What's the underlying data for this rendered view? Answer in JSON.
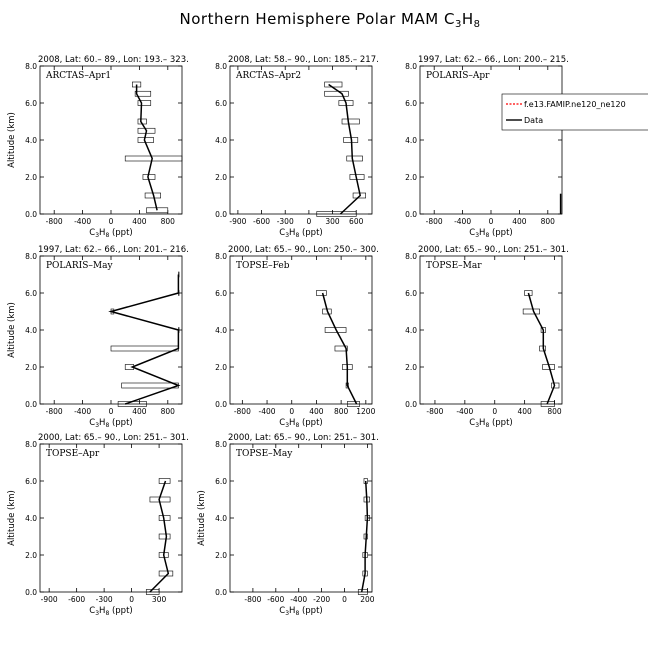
{
  "figure": {
    "title": "Northern Hemisphere Polar MAM C",
    "title_sub1": "3",
    "title_mid": "H",
    "title_sub2": "8",
    "xlabel_main": "C",
    "xlabel_sub1": "3",
    "xlabel_mid": "H",
    "xlabel_sub2": "8",
    "xlabel_unit": " (ppt)",
    "ylabel": "Altitude (km)",
    "colors": {
      "model": "#ff0000",
      "data": "#000000",
      "box": "#000000"
    }
  },
  "chart_data": [
    {
      "type": "line",
      "header": "2008, Lat:  60.– 89., Lon: 193.– 323.",
      "campaign": "ARCTAS–Apr1",
      "xlim": [
        -1000,
        1000
      ],
      "xticks": [
        "-800",
        "-400",
        "0",
        "400",
        "800"
      ],
      "ylim": [
        0,
        8
      ],
      "yticks": [
        "0.0",
        "2.0",
        "4.0",
        "6.0",
        "8.0"
      ],
      "show_yaxis_label": true,
      "series": [
        {
          "x": [
            650,
            600,
            520,
            580,
            470,
            500,
            420,
            430,
            360,
            360
          ],
          "y": [
            0.2,
            1.0,
            2.0,
            3.0,
            4.0,
            4.5,
            5.0,
            6.0,
            6.5,
            7.0
          ],
          "box_lo": [
            500,
            480,
            450,
            200,
            380,
            380,
            380,
            380,
            340,
            300
          ],
          "box_hi": [
            800,
            700,
            620,
            1000,
            600,
            620,
            500,
            560,
            560,
            420
          ]
        }
      ]
    },
    {
      "type": "line",
      "header": "2008, Lat:  58.– 90., Lon: 185.– 217.",
      "campaign": "ARCTAS–Apr2",
      "xlim": [
        -1000,
        800
      ],
      "xticks": [
        "-900",
        "-600",
        "-300",
        "0",
        "300",
        "600"
      ],
      "ylim": [
        0,
        8
      ],
      "yticks": [
        "0.0",
        "2.0",
        "4.0",
        "6.0",
        "8.0"
      ],
      "show_yaxis_label": false,
      "series": [
        {
          "x": [
            400,
            650,
            600,
            550,
            540,
            500,
            470,
            420,
            250
          ],
          "y": [
            0.0,
            1.0,
            2.0,
            3.0,
            4.0,
            5.0,
            6.0,
            6.5,
            7.0
          ],
          "box_lo": [
            100,
            560,
            520,
            480,
            440,
            420,
            380,
            200,
            200
          ],
          "box_hi": [
            600,
            720,
            700,
            680,
            620,
            640,
            560,
            500,
            420
          ]
        }
      ]
    },
    {
      "type": "line",
      "header": "1997, Lat:  62.– 66., Lon: 200.– 215.",
      "campaign": "POLARIS–Apr",
      "xlim": [
        -1000,
        1000
      ],
      "xticks": [
        "-800",
        "-400",
        "0",
        "400",
        "800"
      ],
      "ylim": [
        0,
        8
      ],
      "yticks": [
        "0.0",
        "2.0",
        "4.0",
        "6.0",
        "8.0"
      ],
      "show_yaxis_label": false,
      "legend": {
        "placement": "top-right",
        "entries": [
          "f.e13.FAMIP.ne120_ne120",
          "Data"
        ]
      },
      "series": [
        {
          "x": [
            980,
            980
          ],
          "y": [
            0.0,
            1.1
          ],
          "box_lo": [],
          "box_hi": []
        }
      ]
    },
    {
      "type": "line",
      "header": "1997, Lat:  62.– 66., Lon: 201.– 216.",
      "campaign": "POLARIS–May",
      "xlim": [
        -1000,
        1000
      ],
      "xticks": [
        "-800",
        "-400",
        "0",
        "400",
        "800"
      ],
      "ylim": [
        0,
        8
      ],
      "yticks": [
        "0.0",
        "2.0",
        "4.0",
        "6.0",
        "8.0"
      ],
      "show_yaxis_label": true,
      "series": [
        {
          "x": [
            200,
            950,
            300,
            950,
            950,
            0,
            950,
            950
          ],
          "y": [
            0.0,
            1.0,
            2.0,
            3.0,
            4.0,
            5.0,
            6.0,
            7.0
          ],
          "box_lo": [
            100,
            150,
            200,
            0,
            950,
            0,
            950,
            950
          ],
          "box_hi": [
            500,
            950,
            320,
            950,
            950,
            40,
            950,
            950
          ]
        }
      ]
    },
    {
      "type": "line",
      "header": "2000, Lat:  65.– 90., Lon: 250.– 300.",
      "campaign": "TOPSE–Feb",
      "xlim": [
        -1000,
        1300
      ],
      "xticks": [
        "-800",
        "-400",
        "0",
        "400",
        "800",
        "1200"
      ],
      "ylim": [
        0,
        8
      ],
      "yticks": [
        "0.0",
        "2.0",
        "4.0",
        "6.0",
        "8.0"
      ],
      "show_yaxis_label": false,
      "series": [
        {
          "x": [
            1050,
            900,
            900,
            880,
            720,
            580,
            500
          ],
          "y": [
            0.0,
            1.0,
            2.0,
            3.0,
            4.0,
            5.0,
            6.0
          ],
          "box_lo": [
            900,
            880,
            820,
            700,
            540,
            500,
            400
          ],
          "box_hi": [
            1100,
            920,
            980,
            900,
            880,
            640,
            560
          ]
        }
      ]
    },
    {
      "type": "line",
      "header": "2000, Lat:  65.– 90., Lon: 251.– 301.",
      "campaign": "TOPSE–Mar",
      "xlim": [
        -1000,
        900
      ],
      "xticks": [
        "-800",
        "-400",
        "0",
        "400",
        "800"
      ],
      "ylim": [
        0,
        8
      ],
      "yticks": [
        "0.0",
        "2.0",
        "4.0",
        "6.0",
        "8.0"
      ],
      "show_yaxis_label": false,
      "series": [
        {
          "x": [
            700,
            800,
            730,
            650,
            650,
            520,
            450
          ],
          "y": [
            0.0,
            1.0,
            2.0,
            3.0,
            4.0,
            5.0,
            6.0
          ],
          "box_lo": [
            620,
            760,
            640,
            600,
            620,
            380,
            400
          ],
          "box_hi": [
            800,
            860,
            800,
            680,
            680,
            600,
            500
          ]
        }
      ]
    },
    {
      "type": "line",
      "header": "2000, Lat:  65.– 90., Lon: 251.– 301.",
      "campaign": "TOPSE–Apr",
      "xlim": [
        -1000,
        550
      ],
      "xticks": [
        "-900",
        "-600",
        "-300",
        "0",
        "300"
      ],
      "ylim": [
        0,
        8
      ],
      "yticks": [
        "0.0",
        "2.0",
        "4.0",
        "6.0",
        "8.0"
      ],
      "show_yaxis_label": true,
      "series": [
        {
          "x": [
            200,
            400,
            350,
            380,
            350,
            300,
            370
          ],
          "y": [
            0.0,
            1.0,
            2.0,
            3.0,
            4.0,
            5.0,
            6.0
          ],
          "box_lo": [
            160,
            300,
            300,
            300,
            300,
            200,
            300
          ],
          "box_hi": [
            300,
            450,
            400,
            420,
            420,
            420,
            420
          ]
        }
      ]
    },
    {
      "type": "line",
      "header": "2000, Lat:  65.– 90., Lon: 251.– 301.",
      "campaign": "TOPSE–May",
      "xlim": [
        -1000,
        240
      ],
      "xticks": [
        "-800",
        "-600",
        "-400",
        "-200",
        "0",
        "200"
      ],
      "ylim": [
        0,
        8
      ],
      "yticks": [
        "0.0",
        "2.0",
        "4.0",
        "6.0",
        "8.0"
      ],
      "show_yaxis_label": true,
      "series": [
        {
          "x": [
            150,
            180,
            180,
            190,
            200,
            195,
            185
          ],
          "y": [
            0.0,
            1.0,
            2.0,
            3.0,
            4.0,
            5.0,
            6.0
          ],
          "box_lo": [
            120,
            160,
            160,
            170,
            180,
            170,
            170
          ],
          "box_hi": [
            200,
            200,
            200,
            200,
            220,
            220,
            200
          ]
        }
      ]
    }
  ]
}
